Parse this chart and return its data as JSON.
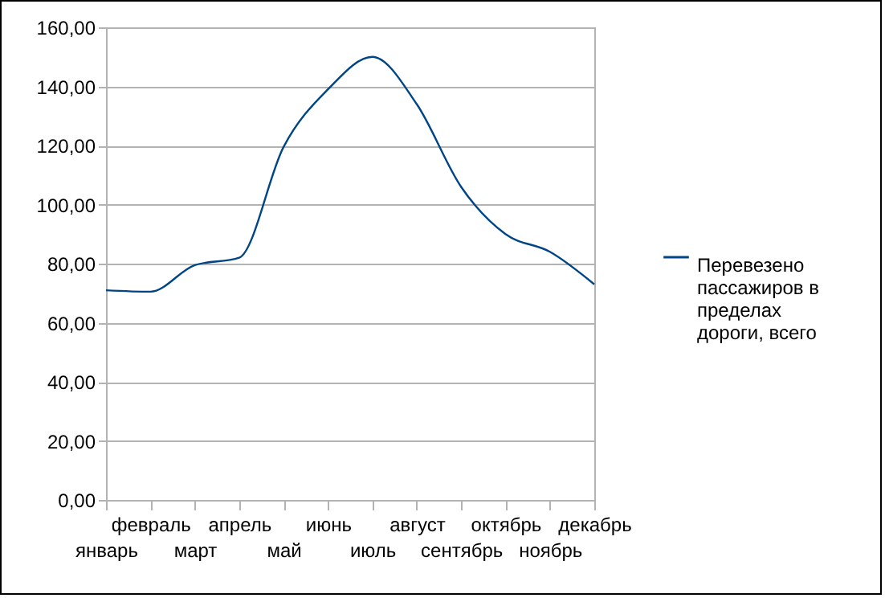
{
  "chart_data": {
    "type": "line",
    "categories": [
      "январь",
      "февраль",
      "март",
      "апрель",
      "май",
      "июнь",
      "июль",
      "август",
      "сентябрь",
      "октябрь",
      "ноябрь",
      "декабрь"
    ],
    "series": [
      {
        "name": "Перевезено пассажиров в пределах дороги, всего",
        "color": "#004586",
        "values": [
          71,
          70.5,
          79.5,
          82,
          119.5,
          139,
          150,
          134,
          106,
          90,
          84,
          73
        ]
      }
    ],
    "ylim": [
      0,
      160
    ],
    "yticks": [
      {
        "value": 0,
        "label": "0,00"
      },
      {
        "value": 20,
        "label": "20,00"
      },
      {
        "value": 40,
        "label": "40,00"
      },
      {
        "value": 60,
        "label": "60,00"
      },
      {
        "value": 80,
        "label": "80,00"
      },
      {
        "value": 100,
        "label": "100,00"
      },
      {
        "value": 120,
        "label": "120,00"
      },
      {
        "value": 140,
        "label": "140,00"
      },
      {
        "value": 160,
        "label": "160,00"
      }
    ],
    "grid": "y",
    "legend": "right",
    "marker": "none",
    "line_style": "solid"
  }
}
